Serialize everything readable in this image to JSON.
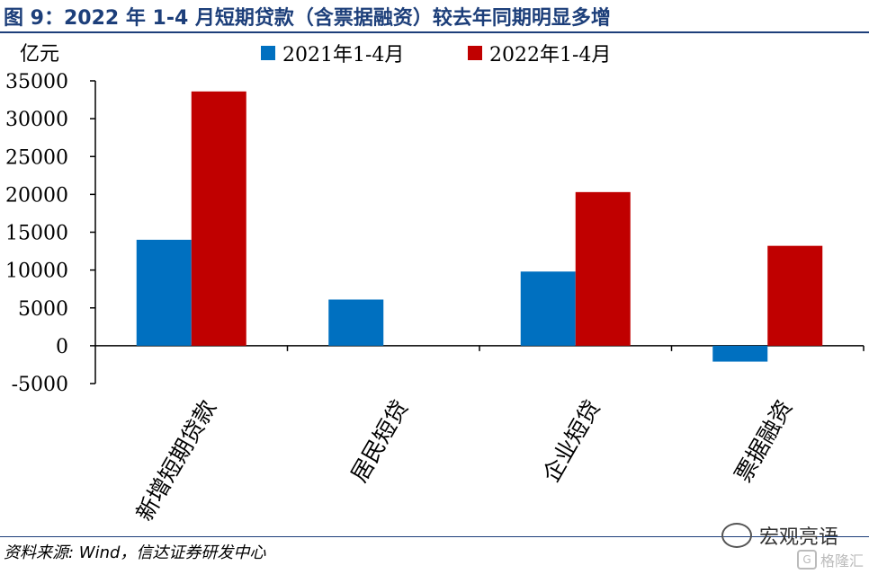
{
  "title": "图 9：2022 年 1-4 月短期贷款（含票据融资）较去年同期明显多增",
  "unit_label": "亿元",
  "source": "资料来源: Wind，信达证券研发中心",
  "brand": "宏观亮语",
  "watermark": "格隆汇",
  "colors": {
    "title": "#1d3f7a",
    "series_2021": "#0070c0",
    "series_2022": "#c00000"
  },
  "chart_data": {
    "type": "bar",
    "categories": [
      "新增短期贷款",
      "居民短贷",
      "企业短贷",
      "票据融资"
    ],
    "series": [
      {
        "name": "2021年1-4月",
        "values": [
          14000,
          6100,
          9800,
          -2100
        ]
      },
      {
        "name": "2022年1-4月",
        "values": [
          33600,
          0,
          20300,
          13200
        ]
      }
    ],
    "ylim": [
      -5000,
      35000
    ],
    "yticks": [
      "35000",
      "30000",
      "25000",
      "20000",
      "15000",
      "10000",
      "5000",
      "0",
      "-5000"
    ],
    "ytick_values": [
      35000,
      30000,
      25000,
      20000,
      15000,
      10000,
      5000,
      0,
      -5000
    ],
    "legend_position": "top",
    "grid": false
  }
}
